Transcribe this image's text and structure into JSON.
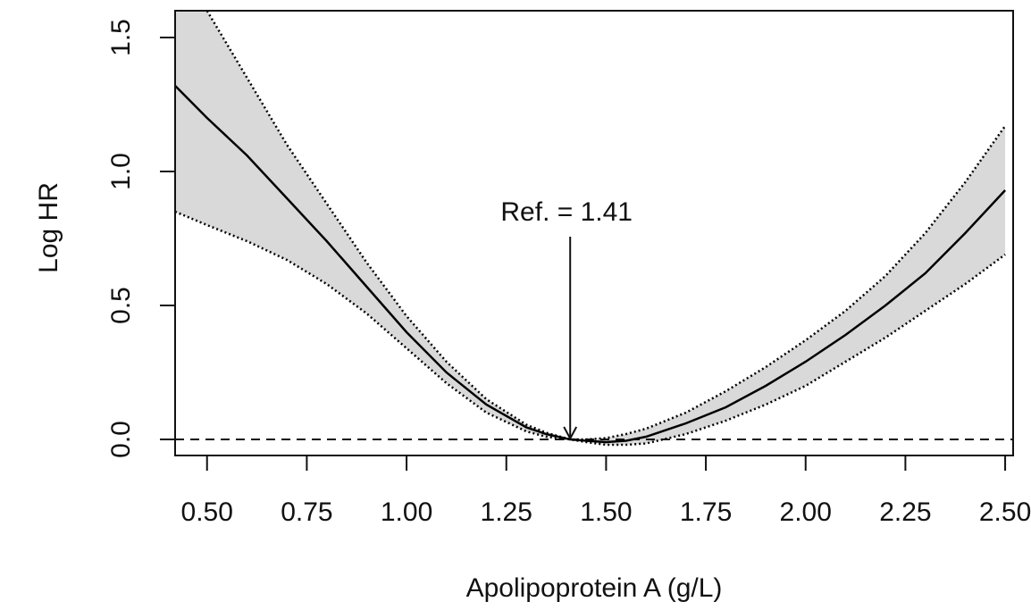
{
  "chart_data": {
    "type": "line",
    "title": "",
    "xlabel": "Apolipoprotein A (g/L)",
    "ylabel": "Log HR",
    "xlim": [
      0.42,
      2.52
    ],
    "ylim": [
      -0.06,
      1.6
    ],
    "x_ticks": [
      "0.50",
      "0.75",
      "1.00",
      "1.25",
      "1.50",
      "1.75",
      "2.00",
      "2.25",
      "2.50"
    ],
    "y_ticks": [
      "0.0",
      "0.5",
      "1.0",
      "1.5"
    ],
    "reference_line_y": 0,
    "annotation": {
      "text": "Ref. = 1.41",
      "x": 1.41,
      "y": 0
    },
    "series": [
      {
        "role": "estimate",
        "x": [
          0.42,
          0.5,
          0.6,
          0.7,
          0.8,
          0.9,
          1.0,
          1.1,
          1.2,
          1.3,
          1.35,
          1.41,
          1.45,
          1.5,
          1.55,
          1.6,
          1.7,
          1.8,
          1.9,
          2.0,
          2.1,
          2.2,
          2.3,
          2.4,
          2.5
        ],
        "values": [
          1.32,
          1.2,
          1.06,
          0.9,
          0.74,
          0.57,
          0.4,
          0.25,
          0.13,
          0.045,
          0.02,
          0.0,
          -0.005,
          -0.01,
          -0.005,
          0.01,
          0.06,
          0.12,
          0.2,
          0.29,
          0.39,
          0.5,
          0.62,
          0.77,
          0.93
        ]
      },
      {
        "role": "upper-ci",
        "x": [
          0.42,
          0.5,
          0.6,
          0.7,
          0.8,
          0.9,
          1.0,
          1.1,
          1.2,
          1.3,
          1.35,
          1.41,
          1.45,
          1.5,
          1.55,
          1.6,
          1.7,
          1.8,
          1.9,
          2.0,
          2.1,
          2.2,
          2.3,
          2.4,
          2.5
        ],
        "values": [
          1.8,
          1.6,
          1.35,
          1.1,
          0.88,
          0.66,
          0.46,
          0.29,
          0.15,
          0.055,
          0.025,
          0.0,
          0.0,
          0.005,
          0.02,
          0.04,
          0.1,
          0.18,
          0.27,
          0.37,
          0.48,
          0.61,
          0.77,
          0.96,
          1.17
        ]
      },
      {
        "role": "lower-ci",
        "x": [
          0.42,
          0.5,
          0.6,
          0.7,
          0.8,
          0.9,
          1.0,
          1.1,
          1.2,
          1.3,
          1.35,
          1.41,
          1.45,
          1.5,
          1.55,
          1.6,
          1.7,
          1.8,
          1.9,
          2.0,
          2.1,
          2.2,
          2.3,
          2.4,
          2.5
        ],
        "values": [
          0.85,
          0.8,
          0.74,
          0.67,
          0.58,
          0.47,
          0.34,
          0.21,
          0.1,
          0.03,
          0.01,
          0.0,
          -0.01,
          -0.02,
          -0.02,
          -0.015,
          0.02,
          0.07,
          0.13,
          0.2,
          0.29,
          0.38,
          0.48,
          0.58,
          0.69
        ]
      }
    ],
    "colors": {
      "band": "#d9d9d9",
      "line": "#000000"
    }
  }
}
